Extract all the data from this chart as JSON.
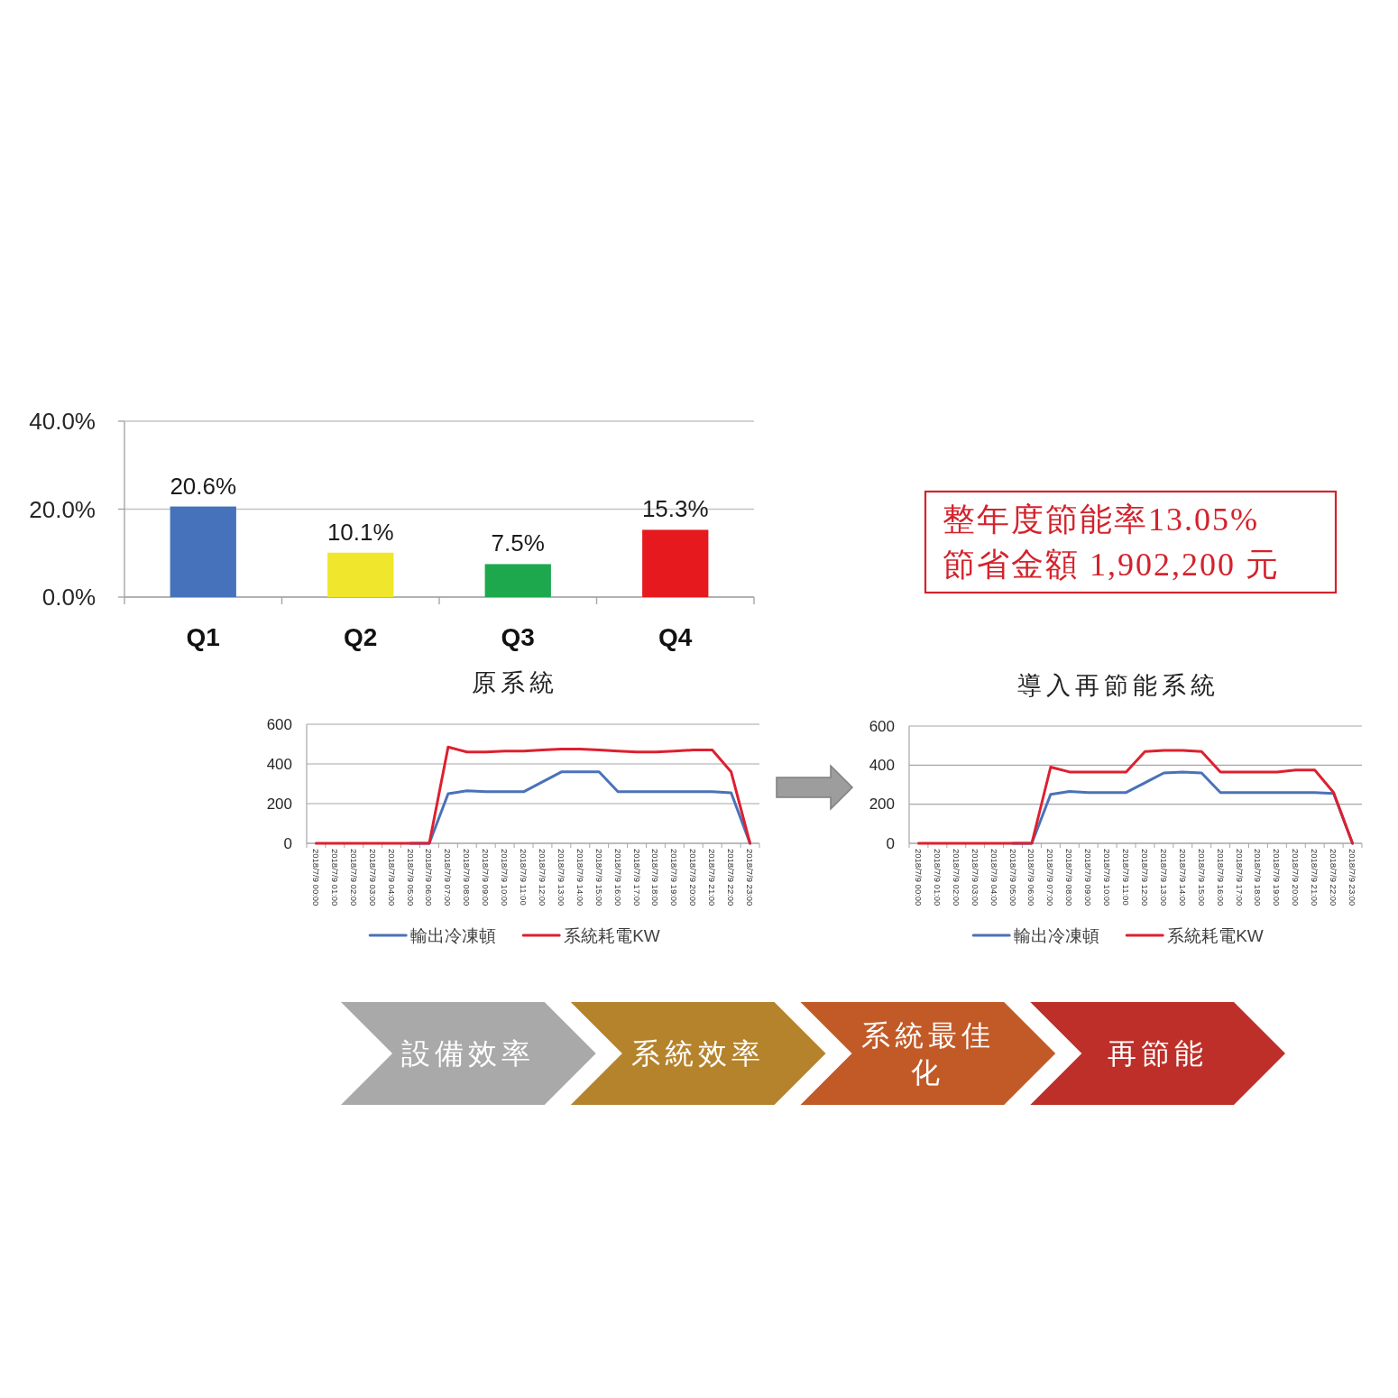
{
  "chart_data": [
    {
      "type": "bar",
      "categories": [
        "Q1",
        "Q2",
        "Q3",
        "Q4"
      ],
      "values": [
        20.6,
        10.1,
        7.5,
        15.3
      ],
      "colors": [
        "#4572bb",
        "#f0e62c",
        "#1ea84e",
        "#e6191f"
      ],
      "ylim": [
        0,
        40
      ],
      "yticks": [
        {
          "value": 0,
          "label": "0.0%"
        },
        {
          "value": 20,
          "label": "20.0%"
        },
        {
          "value": 40,
          "label": "40.0%"
        }
      ],
      "value_labels": [
        "20.6%",
        "10.1%",
        "7.5%",
        "15.3%"
      ],
      "grid": "y"
    },
    {
      "type": "other",
      "annotations": [
        "整年度節能率13.05%",
        "節省金額 1,902,200 元"
      ]
    },
    {
      "type": "line",
      "title": "原系統",
      "categories": [
        "2018/7/9 00:00",
        "2018/7/9 01:00",
        "2018/7/9 02:00",
        "2018/7/9 03:00",
        "2018/7/9 04:00",
        "2018/7/9 05:00",
        "2018/7/9 06:00",
        "2018/7/9 07:00",
        "2018/7/9 08:00",
        "2018/7/9 09:00",
        "2018/7/9 10:00",
        "2018/7/9 11:00",
        "2018/7/9 12:00",
        "2018/7/9 13:00",
        "2018/7/9 14:00",
        "2018/7/9 15:00",
        "2018/7/9 16:00",
        "2018/7/9 17:00",
        "2018/7/9 18:00",
        "2018/7/9 19:00",
        "2018/7/9 20:00",
        "2018/7/9 21:00",
        "2018/7/9 22:00",
        "2018/7/9 23:00"
      ],
      "series": [
        {
          "name": "輸出冷凍頓",
          "color": "#4a72b8",
          "values": [
            null,
            null,
            null,
            null,
            null,
            0,
            0,
            250,
            265,
            260,
            260,
            260,
            310,
            360,
            360,
            360,
            260,
            260,
            260,
            260,
            260,
            260,
            255,
            0
          ]
        },
        {
          "name": "系統耗電KW",
          "color": "#dd2030",
          "values": [
            0,
            0,
            0,
            0,
            0,
            0,
            0,
            485,
            460,
            460,
            465,
            465,
            470,
            475,
            475,
            470,
            465,
            460,
            460,
            465,
            470,
            470,
            360,
            0
          ]
        }
      ],
      "ylim": [
        0,
        600
      ],
      "yticks": [
        0,
        200,
        400,
        600
      ],
      "grid": "y",
      "legend": "bottom"
    },
    {
      "type": "line",
      "title": "導入再節能系統",
      "categories": [
        "2018/7/9 00:00",
        "2018/7/9 01:00",
        "2018/7/9 02:00",
        "2018/7/9 03:00",
        "2018/7/9 04:00",
        "2018/7/9 05:00",
        "2018/7/9 06:00",
        "2018/7/9 07:00",
        "2018/7/9 08:00",
        "2018/7/9 09:00",
        "2018/7/9 10:00",
        "2018/7/9 11:00",
        "2018/7/9 12:00",
        "2018/7/9 13:00",
        "2018/7/9 14:00",
        "2018/7/9 15:00",
        "2018/7/9 16:00",
        "2018/7/9 17:00",
        "2018/7/9 18:00",
        "2018/7/9 19:00",
        "2018/7/9 20:00",
        "2018/7/9 21:00",
        "2018/7/9 22:00",
        "2018/7/9 23:00"
      ],
      "series": [
        {
          "name": "輸出冷凍頓",
          "color": "#4a72b8",
          "values": [
            null,
            null,
            null,
            null,
            null,
            0,
            0,
            250,
            265,
            260,
            260,
            260,
            310,
            360,
            365,
            360,
            260,
            260,
            260,
            260,
            260,
            260,
            255,
            0
          ]
        },
        {
          "name": "系統耗電KW",
          "color": "#dd2030",
          "values": [
            0,
            0,
            0,
            0,
            0,
            0,
            0,
            390,
            365,
            365,
            365,
            365,
            470,
            475,
            475,
            470,
            365,
            365,
            365,
            365,
            375,
            375,
            260,
            0
          ]
        }
      ],
      "ylim": [
        0,
        600
      ],
      "yticks": [
        0,
        200,
        400,
        600
      ],
      "grid": "y",
      "legend": "bottom"
    },
    {
      "type": "other",
      "categories": [
        "設備效率",
        "系統效率",
        "系統最佳化",
        "再節能"
      ],
      "colors": [
        "#a9a9a9",
        "#b5832c",
        "#c25a27",
        "#bd2f28"
      ]
    }
  ]
}
